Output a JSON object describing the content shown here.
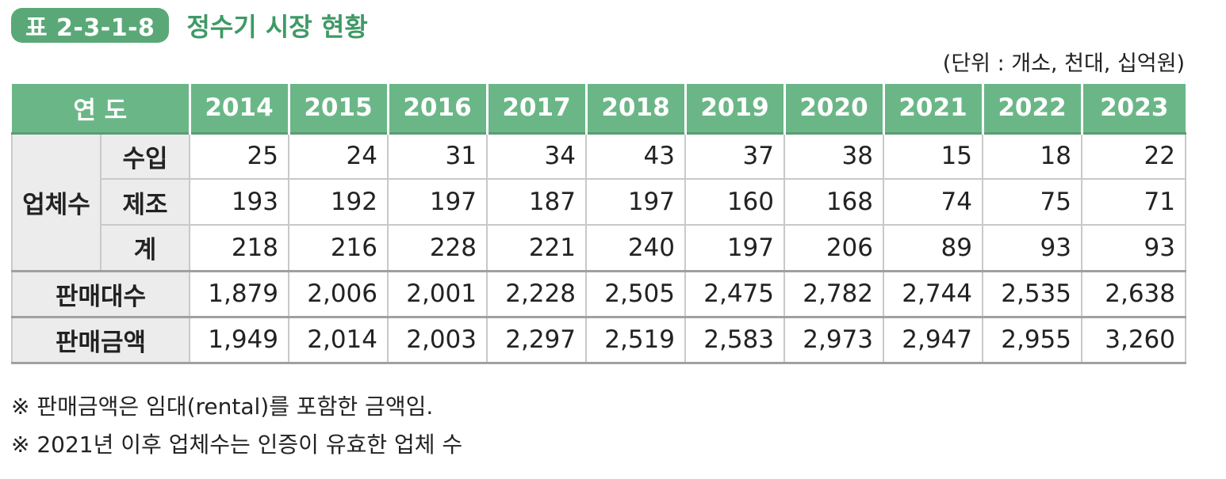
{
  "header": {
    "badge": "표 2-3-1-8",
    "title": "정수기 시장 현황",
    "unit": "(단위 : 개소, 천대, 십억원)"
  },
  "table": {
    "year_header": "연 도",
    "years": [
      "2014",
      "2015",
      "2016",
      "2017",
      "2018",
      "2019",
      "2020",
      "2021",
      "2022",
      "2023"
    ],
    "group_label": "업체수",
    "rows": [
      {
        "label": "수입",
        "values": [
          "25",
          "24",
          "31",
          "34",
          "43",
          "37",
          "38",
          "15",
          "18",
          "22"
        ]
      },
      {
        "label": "제조",
        "values": [
          "193",
          "192",
          "197",
          "187",
          "197",
          "160",
          "168",
          "74",
          "75",
          "71"
        ]
      },
      {
        "label": "계",
        "values": [
          "218",
          "216",
          "228",
          "221",
          "240",
          "197",
          "206",
          "89",
          "93",
          "93"
        ]
      },
      {
        "label": "판매대수",
        "values": [
          "1,879",
          "2,006",
          "2,001",
          "2,228",
          "2,505",
          "2,475",
          "2,782",
          "2,744",
          "2,535",
          "2,638"
        ]
      },
      {
        "label": "판매금액",
        "values": [
          "1,949",
          "2,014",
          "2,003",
          "2,297",
          "2,519",
          "2,583",
          "2,973",
          "2,947",
          "2,955",
          "3,260"
        ]
      }
    ]
  },
  "notes": [
    "※ 판매금액은 임대(rental)를 포함한 금액임.",
    "※ 2021년 이후 업체수는 인증이 유효한 업체 수"
  ]
}
